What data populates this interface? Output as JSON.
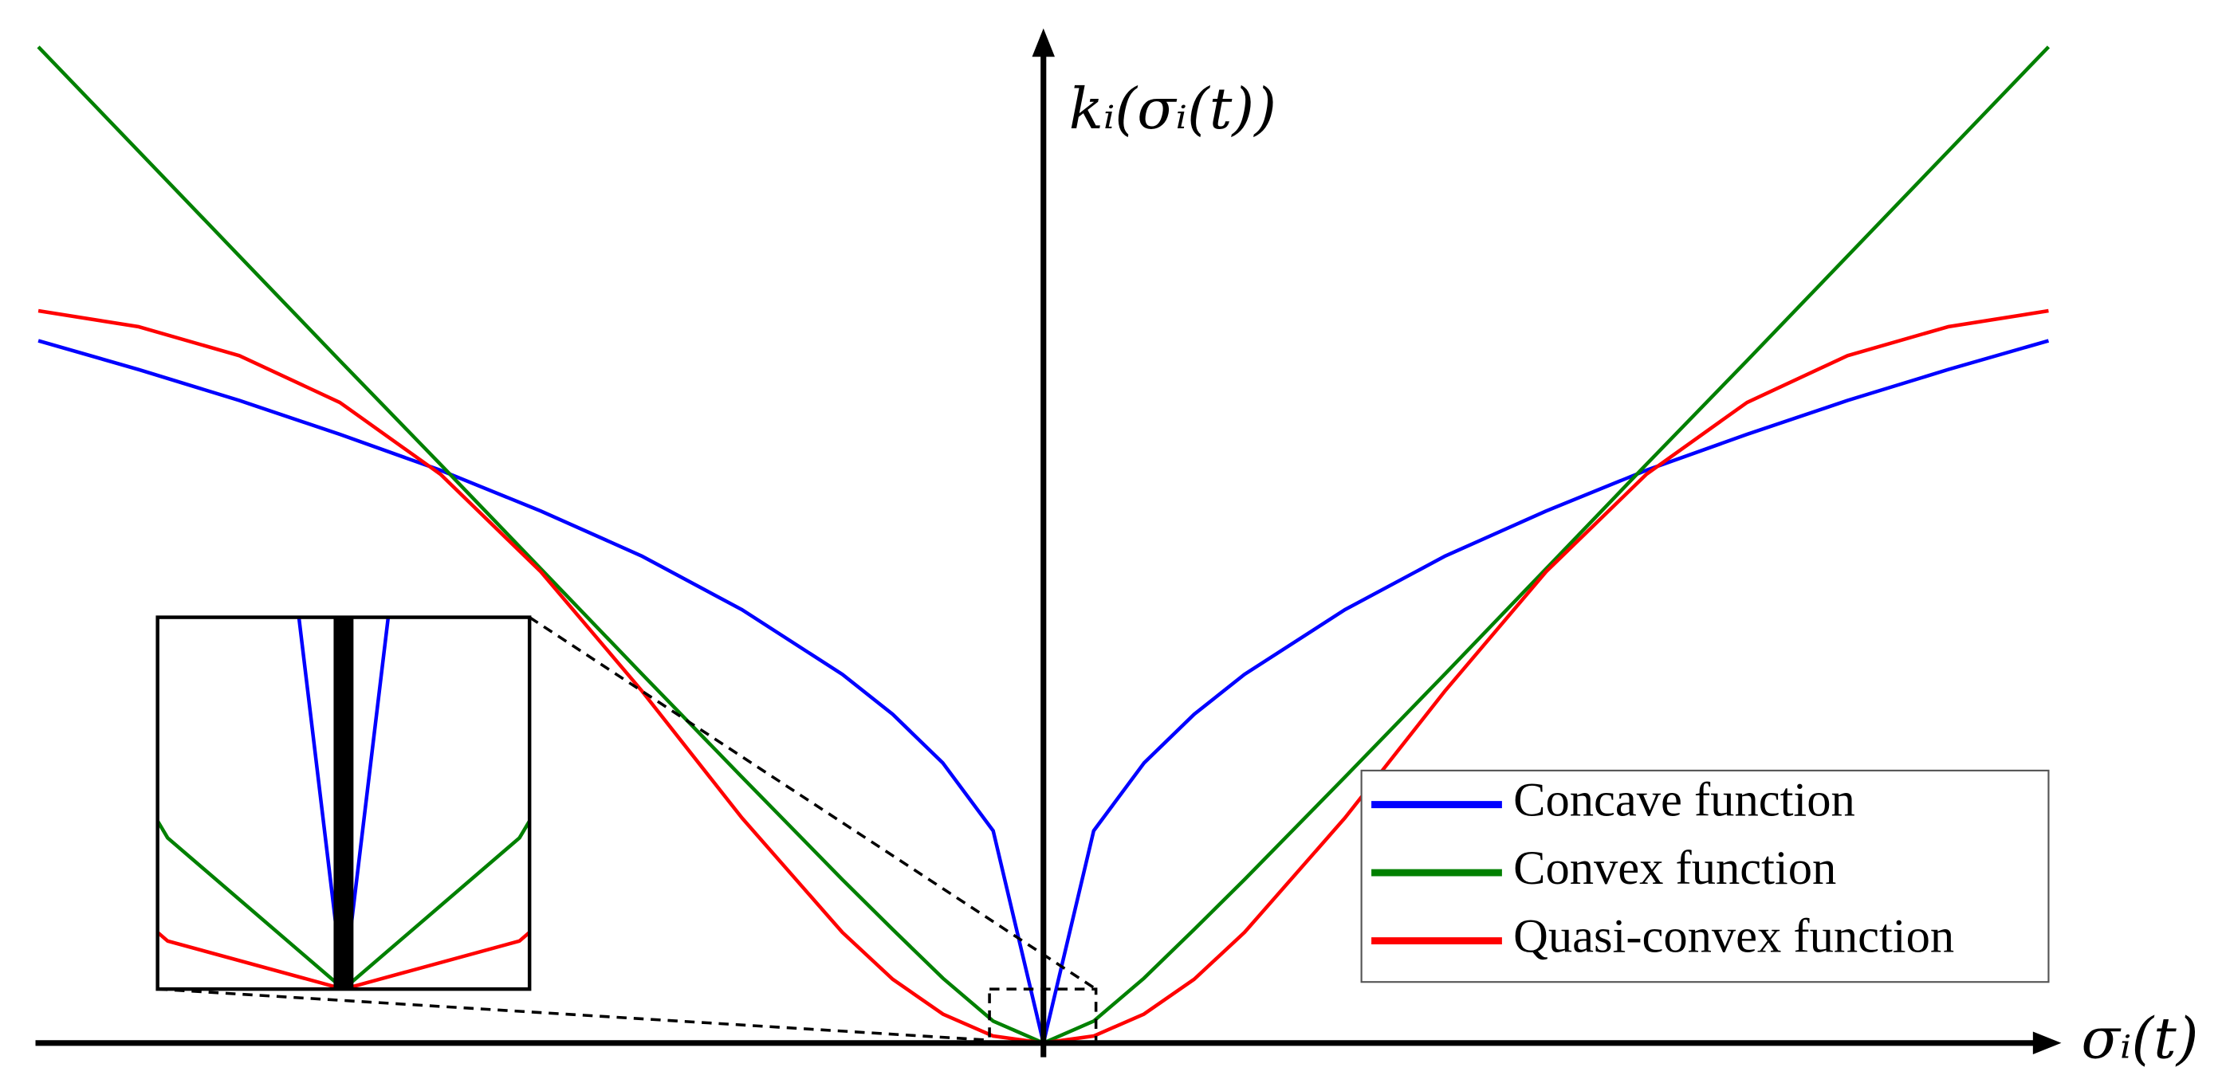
{
  "chart_data": {
    "type": "line",
    "xlabel": "σᵢ(t)",
    "ylabel": "kᵢ(σᵢ(t))",
    "x": [
      -1,
      -0.9,
      -0.8,
      -0.7,
      -0.6,
      -0.5,
      -0.4,
      -0.3,
      -0.2,
      -0.15,
      -0.1,
      -0.05,
      0,
      0.05,
      0.1,
      0.15,
      0.2,
      0.3,
      0.4,
      0.5,
      0.6,
      0.7,
      0.8,
      0.9,
      1
    ],
    "xlim": [
      -1,
      1
    ],
    "ylim": [
      0,
      1
    ],
    "series": [
      {
        "name": "Concave function",
        "color": "#0000ff",
        "values": [
          0.705,
          0.676,
          0.645,
          0.611,
          0.575,
          0.534,
          0.489,
          0.435,
          0.37,
          0.33,
          0.281,
          0.213,
          0,
          0.213,
          0.281,
          0.33,
          0.37,
          0.435,
          0.489,
          0.534,
          0.575,
          0.611,
          0.645,
          0.676,
          0.705
        ]
      },
      {
        "name": "Convex function",
        "color": "#008000",
        "values": [
          1.0,
          0.895,
          0.79,
          0.685,
          0.581,
          0.476,
          0.371,
          0.267,
          0.164,
          0.114,
          0.065,
          0.022,
          0,
          0.022,
          0.065,
          0.114,
          0.164,
          0.267,
          0.371,
          0.476,
          0.581,
          0.685,
          0.79,
          0.895,
          1.0
        ]
      },
      {
        "name": "Quasi-convex function",
        "color": "#ff0000",
        "values": [
          0.735,
          0.719,
          0.69,
          0.643,
          0.571,
          0.473,
          0.354,
          0.226,
          0.111,
          0.064,
          0.029,
          0.007,
          0,
          0.007,
          0.029,
          0.064,
          0.111,
          0.226,
          0.354,
          0.473,
          0.571,
          0.643,
          0.69,
          0.719,
          0.735
        ]
      }
    ],
    "legend_position": "lower right"
  }
}
